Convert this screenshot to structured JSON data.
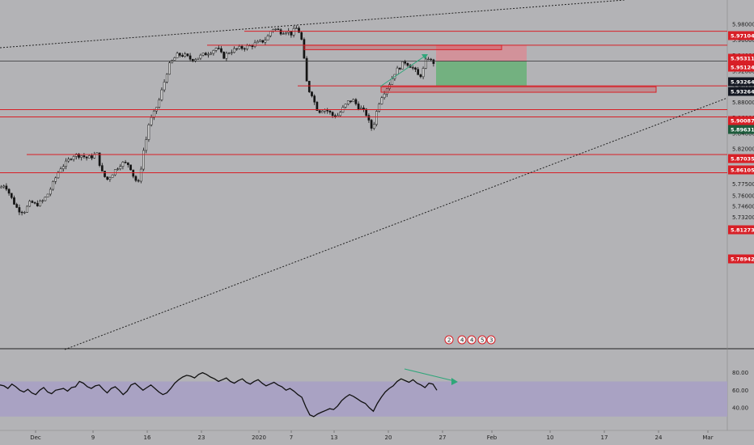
{
  "chart_data": [
    {
      "type": "candlestick",
      "symbol_hint": "",
      "price_axis": {
        "ticks": [
          "5.98000",
          "5.96000",
          "5.94000",
          "5.92000",
          "5.90000",
          "5.88000",
          "5.86000",
          "5.84000",
          "5.82000",
          "5.80500",
          "5.79000",
          "5.77500",
          "5.76000",
          "5.74600",
          "5.73200",
          "5.71900"
        ],
        "ylim": [
          5.717,
          6.002
        ]
      },
      "time_axis": {
        "labels": [
          "Dec",
          "9",
          "16",
          "23",
          "2020",
          "7",
          "13",
          "20",
          "27",
          "Feb",
          "10",
          "17",
          "24",
          "Mar"
        ]
      },
      "level_tags": [
        {
          "text": "5.97104",
          "color": "#d81f26"
        },
        {
          "text": "5.95311",
          "color": "#d81f26"
        },
        {
          "text": "5.95124",
          "color": "#d81f26"
        },
        {
          "text": "5.93264",
          "color": "#131722"
        },
        {
          "text": "5.93264",
          "color": "#131722"
        },
        {
          "text": "5.90087",
          "color": "#d81f26"
        },
        {
          "text": "5.89631",
          "color": "#1e5b3c"
        },
        {
          "text": "5.87035",
          "color": "#d81f26"
        },
        {
          "text": "5.86105",
          "color": "#d81f26"
        },
        {
          "text": "5.81273",
          "color": "#d81f26"
        },
        {
          "text": "5.78942",
          "color": "#d81f26"
        }
      ],
      "horizontal_levels": [
        5.97104,
        5.95311,
        5.90087,
        5.87035,
        5.86105,
        5.81273,
        5.78942
      ],
      "current_price": 5.93264,
      "position_box": {
        "entry": 5.93264,
        "stop": 5.95311,
        "target": 5.90087
      },
      "zones": [
        {
          "top": 5.9531,
          "bottom": 5.9474,
          "label": "resistance zone"
        },
        {
          "top": 5.8998,
          "bottom": 5.8927,
          "label": "support zone"
        }
      ],
      "trendlines": [
        {
          "style": "dotted",
          "from": [
            0,
            5.9668
          ],
          "to": [
            39,
            5.9954
          ]
        },
        {
          "style": "dotted",
          "from": [
            8,
            5.7164
          ],
          "to": [
            91,
            5.9232
          ]
        }
      ],
      "event_markers": [
        "2",
        "4",
        "4",
        "5",
        "3"
      ],
      "colors": {
        "up": "#141414",
        "down": "#141414",
        "level": "#d81f26",
        "background": "#b3b3b6"
      }
    },
    {
      "type": "line",
      "name": "RSI",
      "y_axis": {
        "ticks": [
          "80.00",
          "60.00",
          "40.00"
        ],
        "ylim": [
          25,
          90
        ]
      },
      "band": {
        "low": 30,
        "high": 70,
        "color": "#a7a0c4"
      },
      "values": [
        66,
        65,
        62,
        67,
        64,
        60,
        58,
        61,
        57,
        55,
        60,
        63,
        58,
        56,
        60,
        61,
        62,
        59,
        63,
        64,
        70,
        68,
        64,
        62,
        65,
        66,
        61,
        57,
        62,
        64,
        60,
        55,
        59,
        66,
        68,
        64,
        60,
        63,
        66,
        62,
        58,
        55,
        57,
        62,
        68,
        72,
        75,
        77,
        76,
        74,
        78,
        80,
        78,
        75,
        73,
        70,
        72,
        74,
        70,
        68,
        71,
        73,
        69,
        67,
        70,
        72,
        68,
        65,
        67,
        69,
        66,
        64,
        60,
        62,
        59,
        55,
        52,
        41,
        32,
        30,
        33,
        35,
        37,
        39,
        38,
        42,
        48,
        52,
        55,
        53,
        50,
        47,
        45,
        40,
        36,
        45,
        52,
        58,
        62,
        65,
        70,
        73,
        71,
        69,
        72,
        68,
        66,
        63,
        68,
        67,
        60
      ]
    }
  ]
}
